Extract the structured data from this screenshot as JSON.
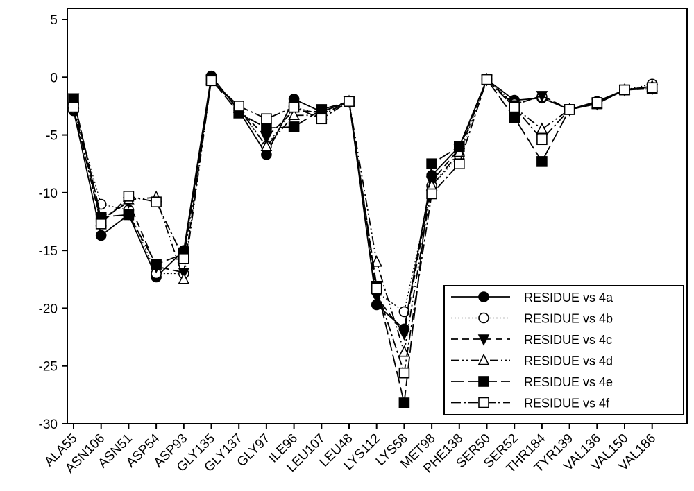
{
  "chart_data": {
    "type": "line",
    "title": "",
    "xlabel": "",
    "ylabel": "",
    "ylim": [
      -30,
      5
    ],
    "yticks": [
      5,
      0,
      -5,
      -10,
      -15,
      -20,
      -25,
      -30
    ],
    "ytick_labels": [
      "5",
      "0",
      "-5",
      "-10",
      "-15",
      "-20",
      "-25",
      "-30"
    ],
    "grid": false,
    "legend_position": "bottom-right",
    "categories": [
      "ALA55",
      "ASN106",
      "ASN51",
      "ASP54",
      "ASP93",
      "GLY135",
      "GLY137",
      "GLY97",
      "ILE96",
      "LEU107",
      "LEU48",
      "LYS112",
      "LYS58",
      "MET98",
      "PHE138",
      "SER50",
      "SER52",
      "THR184",
      "TYR139",
      "VAL136",
      "VAL150",
      "VAL186"
    ],
    "series": [
      {
        "name": "RESIDUE vs 4a",
        "marker": "filled-circle",
        "dash": "solid",
        "values": [
          -2.9,
          -13.7,
          -11.9,
          -17.3,
          -15.0,
          0.1,
          -2.9,
          -6.7,
          -1.9,
          -3.0,
          -2.1,
          -19.7,
          -21.8,
          -8.5,
          -6.0,
          -0.2,
          -2.0,
          -1.8,
          -2.8,
          -2.1,
          -1.1,
          -0.8
        ]
      },
      {
        "name": "RESIDUE vs 4b",
        "marker": "open-circle",
        "dash": "dotted",
        "values": [
          -2.7,
          -11.0,
          -11.5,
          -17.0,
          -17.0,
          -0.2,
          -2.7,
          -6.0,
          -2.6,
          -3.2,
          -2.1,
          -18.6,
          -20.3,
          -9.4,
          -6.8,
          -0.2,
          -2.3,
          -1.7,
          -2.8,
          -2.3,
          -1.1,
          -0.6
        ]
      },
      {
        "name": "RESIDUE vs 4c",
        "marker": "filled-triangle-down",
        "dash": "dashed",
        "values": [
          -1.8,
          -12.3,
          -10.8,
          -16.4,
          -16.9,
          -0.2,
          -2.8,
          -5.2,
          -2.9,
          -3.0,
          -2.1,
          -19.0,
          -22.2,
          -9.0,
          -6.2,
          -0.2,
          -2.4,
          -1.6,
          -2.8,
          -2.3,
          -1.1,
          -1.0
        ]
      },
      {
        "name": "RESIDUE vs 4d",
        "marker": "open-triangle-up",
        "dash": "dash-dot-dot",
        "values": [
          -2.3,
          -12.5,
          -10.6,
          -10.4,
          -17.5,
          -0.2,
          -2.7,
          -6.0,
          -3.3,
          -3.3,
          -2.1,
          -16.0,
          -23.8,
          -9.4,
          -6.5,
          -0.2,
          -2.6,
          -4.5,
          -2.8,
          -2.3,
          -1.1,
          -0.8
        ]
      },
      {
        "name": "RESIDUE vs 4e",
        "marker": "filled-square",
        "dash": "long-dash",
        "values": [
          -1.9,
          -12.1,
          -11.9,
          -16.2,
          -15.3,
          -0.2,
          -3.1,
          -4.4,
          -4.3,
          -2.8,
          -2.1,
          -18.1,
          -28.2,
          -7.5,
          -6.0,
          -0.2,
          -3.5,
          -7.3,
          -2.8,
          -2.3,
          -1.1,
          -1.0
        ]
      },
      {
        "name": "RESIDUE vs 4f",
        "marker": "open-square",
        "dash": "dash-dot",
        "values": [
          -2.6,
          -12.7,
          -10.3,
          -10.8,
          -15.7,
          -0.3,
          -2.5,
          -3.6,
          -2.6,
          -3.6,
          -2.1,
          -18.3,
          -25.6,
          -10.1,
          -7.5,
          -0.2,
          -2.6,
          -5.4,
          -2.8,
          -2.2,
          -1.1,
          -0.9
        ]
      }
    ]
  }
}
